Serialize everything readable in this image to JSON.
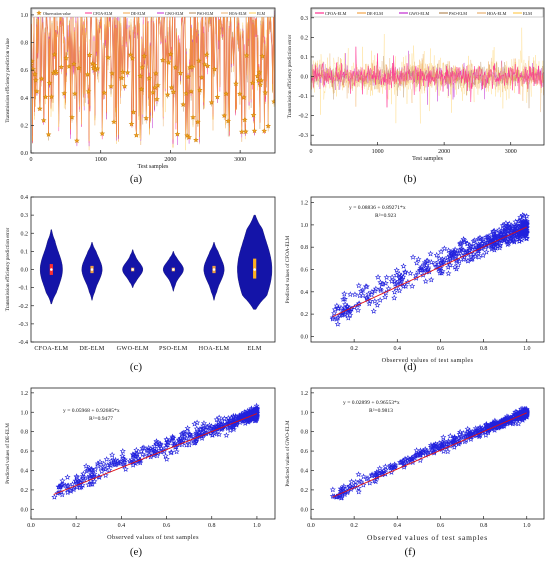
{
  "colors": {
    "axis": "#222222",
    "grid": "#e6e6e6",
    "observation": "#f5a623",
    "observation_edge": "#d4860e",
    "cfoa": "#ff2e8f",
    "de": "#f2a54a",
    "gwo": "#c02ad0",
    "pso": "#b38a5a",
    "hoa": "#e8b070",
    "elm": "#ffcc55",
    "violin": "#1414a8",
    "star": "#2222dd",
    "fit": "#e01010"
  },
  "chart_data": [
    {
      "id": "a",
      "type": "line",
      "panel_label": "(a)",
      "xlabel": "Test samples",
      "ylabel": "Transmission efficiency prediction value",
      "xlim": [
        0,
        3500
      ],
      "ylim": [
        0.0,
        1.05
      ],
      "xticks": [
        0,
        1000,
        2000,
        3000
      ],
      "yticks": [
        0.0,
        0.2,
        0.4,
        0.6,
        0.8,
        1.0
      ],
      "xtick_labels": [
        "0",
        "1000",
        "2000",
        "3000"
      ],
      "ytick_labels": [
        "0.0",
        "0.2",
        "0.4",
        "0.6",
        "0.8",
        "1.0"
      ],
      "legend": [
        "Observation value",
        "CFOA-ELM",
        "DE-ELM",
        "GWO-ELM",
        "PSO-ELM",
        "HOA-ELM",
        "ELM"
      ],
      "legend_placement": "top",
      "n_samples": 3500,
      "value_range": [
        0.08,
        1.0
      ]
    },
    {
      "id": "b",
      "type": "line",
      "panel_label": "(b)",
      "xlabel": "Test samples",
      "ylabel": "Transmission efficiency prediction error",
      "xlim": [
        0,
        3500
      ],
      "ylim": [
        -0.35,
        0.35
      ],
      "xticks": [
        0,
        1000,
        2000,
        3000
      ],
      "yticks": [
        -0.3,
        -0.2,
        -0.1,
        0.0,
        0.1,
        0.2,
        0.3
      ],
      "xtick_labels": [
        "0",
        "1000",
        "2000",
        "3000"
      ],
      "ytick_labels": [
        "-0.3",
        "-0.2",
        "-0.1",
        "0.0",
        "0.1",
        "0.2",
        "0.3"
      ],
      "legend": [
        "CFOA-ELM",
        "DE-ELM",
        "GWO-ELM",
        "PSO-ELM",
        "HOA-ELM",
        "ELM"
      ],
      "legend_placement": "top",
      "series": [
        {
          "name": "CFOA-ELM",
          "spread": 0.05
        },
        {
          "name": "DE-ELM",
          "spread": 0.06
        },
        {
          "name": "GWO-ELM",
          "spread": 0.045
        },
        {
          "name": "PSO-ELM",
          "spread": 0.05
        },
        {
          "name": "HOA-ELM",
          "spread": 0.06
        },
        {
          "name": "ELM",
          "spread": 0.11
        }
      ]
    },
    {
      "id": "c",
      "type": "violin",
      "panel_label": "(c)",
      "xlabel": "",
      "ylabel": "Transmission efficiency prediction error",
      "ylim": [
        -0.4,
        0.4
      ],
      "yticks": [
        -0.4,
        -0.3,
        -0.2,
        -0.1,
        0.0,
        0.1,
        0.2,
        0.3,
        0.4
      ],
      "ytick_labels": [
        "-0.4",
        "-0.3",
        "-0.2",
        "-0.1",
        "0.0",
        "0.1",
        "0.2",
        "0.3",
        "0.4"
      ],
      "categories": [
        "CFOA-ELM",
        "DE-ELM",
        "GWO-ELM",
        "PSO-ELM",
        "HOA-ELM",
        "ELM"
      ],
      "series": [
        {
          "name": "CFOA-ELM",
          "min": -0.19,
          "max": 0.22,
          "q1": -0.03,
          "median": 0.0,
          "q3": 0.03,
          "width": 0.11
        },
        {
          "name": "DE-ELM",
          "min": -0.17,
          "max": 0.15,
          "q1": -0.02,
          "median": 0.0,
          "q3": 0.02,
          "width": 0.1
        },
        {
          "name": "GWO-ELM",
          "min": -0.1,
          "max": 0.11,
          "q1": -0.01,
          "median": 0.0,
          "q3": 0.01,
          "width": 0.1
        },
        {
          "name": "PSO-ELM",
          "min": -0.12,
          "max": 0.1,
          "q1": -0.01,
          "median": 0.0,
          "q3": 0.01,
          "width": 0.1
        },
        {
          "name": "HOA-ELM",
          "min": -0.17,
          "max": 0.15,
          "q1": -0.02,
          "median": 0.0,
          "q3": 0.02,
          "width": 0.1
        },
        {
          "name": "ELM",
          "min": -0.22,
          "max": 0.3,
          "q1": -0.05,
          "median": 0.0,
          "q3": 0.06,
          "width": 0.17
        }
      ]
    },
    {
      "id": "d",
      "type": "scatter",
      "panel_label": "(d)",
      "xlabel": "Observed values of test samples",
      "ylabel": "Predicted values of CFOA-ELM",
      "xlim": [
        0.0,
        1.08
      ],
      "ylim": [
        -0.05,
        1.25
      ],
      "xticks": [
        0.2,
        0.4,
        0.6,
        0.8,
        1.0
      ],
      "yticks": [
        0.0,
        0.2,
        0.4,
        0.6,
        0.8,
        1.0,
        1.2
      ],
      "xtick_labels": [
        "0.2",
        "0.4",
        "0.6",
        "0.8",
        "1.0"
      ],
      "ytick_labels": [
        "0.0",
        "0.2",
        "0.4",
        "0.6",
        "0.8",
        "1.0",
        "1.2"
      ],
      "equation": "y = 0.08836 + 0.89271*x",
      "r2": "R²=0.923",
      "fit": {
        "intercept": 0.08836,
        "slope": 0.89271
      },
      "noise": 0.06
    },
    {
      "id": "e",
      "type": "scatter",
      "panel_label": "(e)",
      "xlabel": "Observed values of test samples",
      "ylabel": "Predicted values of DE-ELM",
      "xlim": [
        0.0,
        1.08
      ],
      "ylim": [
        -0.1,
        1.25
      ],
      "xticks": [
        0.0,
        0.2,
        0.4,
        0.6,
        0.8,
        1.0
      ],
      "yticks": [
        0.0,
        0.2,
        0.4,
        0.6,
        0.8,
        1.0,
        1.2
      ],
      "xtick_labels": [
        "0.0",
        "0.2",
        "0.4",
        "0.6",
        "0.8",
        "1.0"
      ],
      "ytick_labels": [
        "0.0",
        "0.2",
        "0.4",
        "0.6",
        "0.8",
        "1.0",
        "1.2"
      ],
      "equation": "y = 0.05968 + 0.92685*x",
      "r2": "R²=0.9477",
      "fit": {
        "intercept": 0.05968,
        "slope": 0.92685
      },
      "noise": 0.045
    },
    {
      "id": "f",
      "type": "scatter",
      "panel_label": "(f)",
      "xlabel": "Observed values of test samples",
      "ylabel": "Predicted values of GWO-ELM",
      "xlim": [
        0.0,
        1.08
      ],
      "ylim": [
        -0.1,
        1.25
      ],
      "xticks": [
        0.0,
        0.2,
        0.4,
        0.6,
        0.8,
        1.0
      ],
      "yticks": [
        0.0,
        0.2,
        0.4,
        0.6,
        0.8,
        1.0,
        1.2
      ],
      "xtick_labels": [
        "0.0",
        "0.2",
        "0.4",
        "0.6",
        "0.8",
        "1.0"
      ],
      "ytick_labels": [
        "0.0",
        "0.2",
        "0.4",
        "0.6",
        "0.8",
        "1.0",
        "1.2"
      ],
      "equation": "y = 0.02899 + 0.96553*x",
      "r2": "R²=0.9813",
      "fit": {
        "intercept": 0.02899,
        "slope": 0.96553
      },
      "noise": 0.03
    }
  ]
}
